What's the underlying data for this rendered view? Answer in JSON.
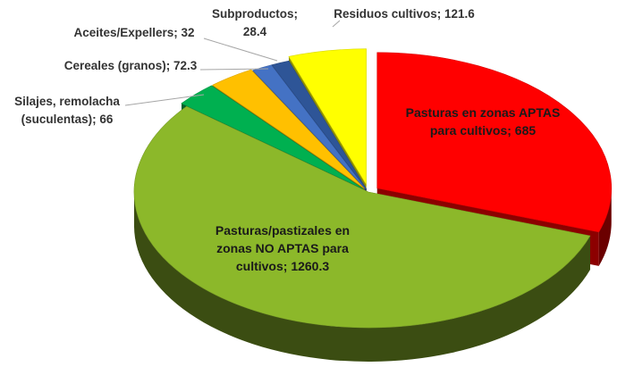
{
  "chart_data": {
    "type": "pie",
    "style": "3d-exploded",
    "title": "",
    "series": [
      {
        "values": [
          685,
          1260.3,
          66,
          72.3,
          32,
          28.4,
          121.6
        ],
        "categories": [
          "Pasturas en zonas APTAS para cultivos",
          "Pasturas/pastizales en zonas NO APTAS para cultivos",
          "Silajes, remolacha (suculentas)",
          "Cereales (granos)",
          "Aceites/Expellers",
          "Subproductos",
          "Residuos cultivos"
        ]
      }
    ],
    "colors": [
      "#ff0000",
      "#8cb82a",
      "#00b050",
      "#ffc000",
      "#4472c4",
      "#2e5597",
      "#ffff00"
    ],
    "labels": [
      {
        "lines": [
          "Pasturas en zonas APTAS",
          "para cultivos; 685"
        ]
      },
      {
        "lines": [
          "Pasturas/pastizales en",
          "zonas NO APTAS para",
          "cultivos; 1260.3"
        ]
      },
      {
        "lines": [
          "Silajes, remolacha",
          "(suculentas); 66"
        ]
      },
      {
        "lines": [
          "Cereales (granos); 72.3"
        ]
      },
      {
        "lines": [
          "Aceites/Expellers; 32"
        ]
      },
      {
        "lines": [
          "Subproductos;",
          "28.4"
        ]
      },
      {
        "lines": [
          "Residuos cultivos; 121.6"
        ]
      }
    ]
  }
}
